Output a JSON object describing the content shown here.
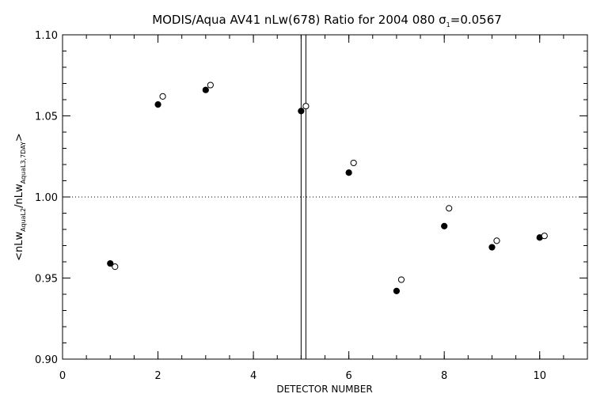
{
  "chart_data": {
    "type": "scatter",
    "title": "MODIS/Aqua AV41 nLw(678) Ratio for 2004 080 σ",
    "title_sub": "1",
    "title_suffix": "=0.0567",
    "xlabel": "DETECTOR NUMBER",
    "ylabel_parts": {
      "open": "<nLw",
      "sub1": "AquaL2",
      "mid": "/nLw",
      "sub2": "AquaL3,7DAY",
      "close": ">"
    },
    "xlim": [
      0,
      11
    ],
    "ylim": [
      0.9,
      1.1
    ],
    "x_ticks": [
      0,
      2,
      4,
      6,
      8,
      10
    ],
    "x_tick_labels": [
      "0",
      "2",
      "4",
      "6",
      "8",
      "10"
    ],
    "x_minor_step": 0.5,
    "y_ticks": [
      0.9,
      0.95,
      1.0,
      1.05,
      1.1
    ],
    "y_tick_labels": [
      "0.90",
      "0.95",
      "1.00",
      "1.05",
      "1.10"
    ],
    "y_minor_step": 0.01,
    "reference_line_y": 1.0,
    "vertical_lines_x": [
      5.0,
      5.1
    ],
    "series": [
      {
        "marker": "filled-circle",
        "x": [
          1,
          2,
          3,
          5,
          6,
          7,
          8,
          9,
          10
        ],
        "y": [
          0.959,
          1.057,
          1.066,
          1.053,
          1.015,
          0.942,
          0.982,
          0.969,
          0.975
        ]
      },
      {
        "marker": "open-circle",
        "x": [
          1.1,
          2.1,
          3.1,
          5.1,
          6.1,
          7.1,
          8.1,
          9.1,
          10.1
        ],
        "y": [
          0.957,
          1.062,
          1.069,
          1.056,
          1.021,
          0.949,
          0.993,
          0.973,
          0.976
        ]
      }
    ],
    "grid": false,
    "legend": "none"
  }
}
